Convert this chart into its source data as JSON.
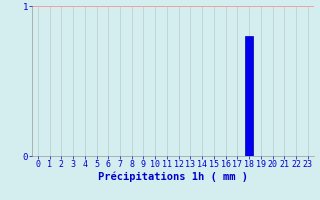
{
  "hours": [
    0,
    1,
    2,
    3,
    4,
    5,
    6,
    7,
    8,
    9,
    10,
    11,
    12,
    13,
    14,
    15,
    16,
    17,
    18,
    19,
    20,
    21,
    22,
    23
  ],
  "values": [
    0,
    0,
    0,
    0,
    0,
    0,
    0,
    0,
    0,
    0,
    0,
    0,
    0,
    0,
    0,
    0,
    0,
    0,
    0.8,
    0,
    0,
    0,
    0,
    0
  ],
  "bar_color": "#0000ee",
  "bar_edge_color": "#0000aa",
  "background_color": "#d4eef0",
  "grid_color_h": "#f0a0a0",
  "grid_color_v": "#b8cccc",
  "text_color": "#0000cc",
  "xlabel": "Précipitations 1h ( mm )",
  "ylabel": "",
  "ylim": [
    0,
    1.0
  ],
  "yticks": [
    0,
    1
  ],
  "xlim": [
    -0.5,
    23.5
  ],
  "xlabel_fontsize": 7.5,
  "tick_fontsize": 6,
  "title": ""
}
